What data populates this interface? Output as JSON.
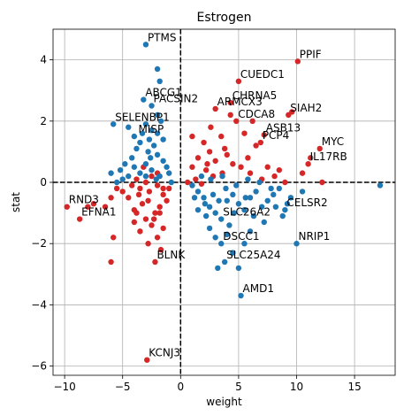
{
  "chart_data": {
    "type": "scatter",
    "title": "Estrogen",
    "xlabel": "weight",
    "ylabel": "stat",
    "xlim": [
      -11,
      18.5
    ],
    "ylim": [
      -6.3,
      5.0
    ],
    "xticks": [
      -10,
      -5,
      0,
      5,
      10,
      15
    ],
    "yticks": [
      -6,
      -4,
      -2,
      0,
      2,
      4
    ],
    "grid": true,
    "reference_lines": {
      "x": 0,
      "y": 0,
      "style": "dashed"
    },
    "colors": {
      "positive": "#d62728",
      "negative": "#1f77b4"
    },
    "series": [
      {
        "name": "red",
        "color": "#d62728",
        "points": [
          [
            5.0,
            3.3
          ],
          [
            10.1,
            3.95
          ],
          [
            4.3,
            2.6
          ],
          [
            4.3,
            2.2
          ],
          [
            3.0,
            2.4
          ],
          [
            4.8,
            2.0
          ],
          [
            9.3,
            2.2
          ],
          [
            9.6,
            2.3
          ],
          [
            7.2,
            1.55
          ],
          [
            6.9,
            1.3
          ],
          [
            6.5,
            1.2
          ],
          [
            12.0,
            1.1
          ],
          [
            11.0,
            0.6
          ],
          [
            11.2,
            0.8
          ],
          [
            10.5,
            0.3
          ],
          [
            12.2,
            0.0
          ],
          [
            3.5,
            1.5
          ],
          [
            2.0,
            1.3
          ],
          [
            2.5,
            1.0
          ],
          [
            1.5,
            0.8
          ],
          [
            3.0,
            0.7
          ],
          [
            1.0,
            0.5
          ],
          [
            2.2,
            0.4
          ],
          [
            4.5,
            0.6
          ],
          [
            3.6,
            0.3
          ],
          [
            2.8,
            0.2
          ],
          [
            1.3,
            0.1
          ],
          [
            5.8,
            0.8
          ],
          [
            5.2,
            0.5
          ],
          [
            6.0,
            0.3
          ],
          [
            7.0,
            0.1
          ],
          [
            8.1,
            0.2
          ],
          [
            9.0,
            0.0
          ],
          [
            0.6,
            0.0
          ],
          [
            1.8,
            -0.05
          ],
          [
            2.6,
            1.8
          ],
          [
            3.8,
            1.1
          ],
          [
            5.5,
            1.6
          ],
          [
            6.2,
            2.0
          ],
          [
            4.0,
            0.9
          ],
          [
            1.0,
            1.5
          ],
          [
            2.3,
            0.6
          ],
          [
            8.5,
            0.4
          ],
          [
            7.5,
            0.5
          ],
          [
            -3.2,
            0.5
          ],
          [
            -2.5,
            0.2
          ],
          [
            -2.0,
            -0.1
          ],
          [
            -1.5,
            -0.4
          ],
          [
            -2.8,
            -0.6
          ],
          [
            -3.5,
            -0.2
          ],
          [
            -1.8,
            -0.8
          ],
          [
            -2.2,
            -1.0
          ],
          [
            -3.0,
            -1.2
          ],
          [
            -4.0,
            -0.9
          ],
          [
            -1.5,
            -1.5
          ],
          [
            -2.5,
            -1.4
          ],
          [
            -3.5,
            -1.6
          ],
          [
            -2.0,
            -1.8
          ],
          [
            -1.7,
            -2.2
          ],
          [
            -2.8,
            -2.0
          ],
          [
            -3.8,
            -1.0
          ],
          [
            -4.5,
            -0.5
          ],
          [
            -5.0,
            -0.3
          ],
          [
            -5.5,
            -0.2
          ],
          [
            -6.0,
            -0.5
          ],
          [
            -6.5,
            -0.8
          ],
          [
            -7.5,
            -0.7
          ],
          [
            -8.0,
            -0.8
          ],
          [
            -8.7,
            -1.2
          ],
          [
            -9.8,
            -0.8
          ],
          [
            -5.8,
            -1.8
          ],
          [
            -6.0,
            -2.6
          ],
          [
            -2.2,
            -2.6
          ],
          [
            -1.5,
            -0.2
          ],
          [
            -3.0,
            0.0
          ],
          [
            -2.0,
            0.3
          ],
          [
            -3.8,
            0.1
          ],
          [
            -4.2,
            -0.1
          ],
          [
            -2.7,
            -0.3
          ],
          [
            -1.2,
            -0.6
          ],
          [
            -3.3,
            -0.7
          ],
          [
            -2.3,
            -1.2
          ],
          [
            -4.0,
            -1.3
          ],
          [
            -1.8,
            -1.0
          ],
          [
            -2.9,
            -5.8
          ],
          [
            -3.6,
            -0.4
          ],
          [
            -1.0,
            -0.2
          ]
        ]
      },
      {
        "name": "blue",
        "color": "#1f77b4",
        "points": [
          [
            -2.0,
            3.7
          ],
          [
            -1.8,
            3.3
          ],
          [
            -3.0,
            4.5
          ],
          [
            -3.2,
            2.7
          ],
          [
            -2.5,
            2.5
          ],
          [
            -2.0,
            2.2
          ],
          [
            -3.0,
            1.9
          ],
          [
            -2.5,
            1.7
          ],
          [
            -4.5,
            1.8
          ],
          [
            -4.0,
            1.5
          ],
          [
            -3.5,
            1.3
          ],
          [
            -2.8,
            1.0
          ],
          [
            -2.0,
            0.9
          ],
          [
            -1.5,
            0.7
          ],
          [
            -3.0,
            0.6
          ],
          [
            -4.0,
            0.5
          ],
          [
            -4.5,
            0.2
          ],
          [
            -5.0,
            0.1
          ],
          [
            -5.5,
            0.0
          ],
          [
            -3.5,
            0.3
          ],
          [
            -2.5,
            0.4
          ],
          [
            -1.8,
            0.2
          ],
          [
            -1.2,
            0.5
          ],
          [
            -2.3,
            1.2
          ],
          [
            -3.8,
            1.1
          ],
          [
            -2.6,
            0.8
          ],
          [
            -1.5,
            1.4
          ],
          [
            -2.0,
            1.6
          ],
          [
            -3.3,
            1.6
          ],
          [
            -1.7,
            2.0
          ],
          [
            -4.2,
            0.8
          ],
          [
            -3.0,
            0.2
          ],
          [
            -2.1,
            0.1
          ],
          [
            -5.8,
            1.9
          ],
          [
            -6.0,
            0.3
          ],
          [
            -5.2,
            0.4
          ],
          [
            -4.8,
            0.6
          ],
          [
            -1.0,
            0.3
          ],
          [
            -0.8,
            0.0
          ],
          [
            -2.7,
            1.4
          ],
          [
            1.0,
            -0.1
          ],
          [
            1.5,
            -0.3
          ],
          [
            2.0,
            -0.5
          ],
          [
            2.5,
            -0.8
          ],
          [
            3.0,
            -1.0
          ],
          [
            3.5,
            -1.2
          ],
          [
            4.0,
            -0.6
          ],
          [
            4.5,
            -0.4
          ],
          [
            5.0,
            -0.7
          ],
          [
            5.5,
            -0.9
          ],
          [
            6.0,
            -0.5
          ],
          [
            6.5,
            -0.3
          ],
          [
            7.0,
            -0.8
          ],
          [
            7.5,
            -0.6
          ],
          [
            8.0,
            -0.4
          ],
          [
            8.5,
            -0.2
          ],
          [
            9.0,
            -0.9
          ],
          [
            9.5,
            -0.5
          ],
          [
            10.5,
            -0.3
          ],
          [
            3.5,
            -2.0
          ],
          [
            4.5,
            -2.3
          ],
          [
            5.5,
            -2.0
          ],
          [
            6.0,
            -1.6
          ],
          [
            3.8,
            -2.6
          ],
          [
            3.2,
            -2.8
          ],
          [
            5.0,
            -2.8
          ],
          [
            2.5,
            -1.5
          ],
          [
            3.0,
            -1.8
          ],
          [
            4.2,
            -1.4
          ],
          [
            1.5,
            -0.9
          ],
          [
            2.2,
            -1.1
          ],
          [
            1.2,
            -0.5
          ],
          [
            1.8,
            0.2
          ],
          [
            2.6,
            0.1
          ],
          [
            3.6,
            0.2
          ],
          [
            4.8,
            -0.1
          ],
          [
            5.8,
            0.1
          ],
          [
            6.8,
            0.0
          ],
          [
            7.8,
            -0.2
          ],
          [
            8.8,
            -1.1
          ],
          [
            9.2,
            -0.7
          ],
          [
            10.0,
            -2.0
          ],
          [
            5.2,
            -3.7
          ],
          [
            17.2,
            -0.1
          ],
          [
            4.0,
            -1.7
          ],
          [
            2.8,
            -0.4
          ],
          [
            3.3,
            -0.6
          ],
          [
            6.3,
            -1.1
          ],
          [
            7.2,
            -1.3
          ],
          [
            4.6,
            -1.0
          ],
          [
            3.9,
            -0.2
          ],
          [
            2.1,
            -0.7
          ],
          [
            5.6,
            -0.5
          ],
          [
            8.2,
            -0.8
          ]
        ]
      }
    ],
    "annotations": [
      {
        "label": "PTMS",
        "x": -3.0,
        "y": 4.5
      },
      {
        "label": "PPIF",
        "x": 10.1,
        "y": 3.95
      },
      {
        "label": "CUEDC1",
        "x": 5.0,
        "y": 3.3
      },
      {
        "label": "ABCG1",
        "x": -3.2,
        "y": 2.7
      },
      {
        "label": "PACSIN2",
        "x": -2.5,
        "y": 2.5
      },
      {
        "label": "CHRNA5",
        "x": 4.3,
        "y": 2.6
      },
      {
        "label": "ARMCX3",
        "x": 3.0,
        "y": 2.4
      },
      {
        "label": "SIAH2",
        "x": 9.3,
        "y": 2.2
      },
      {
        "label": "CDCA8",
        "x": 4.8,
        "y": 2.0
      },
      {
        "label": "SELENBP1",
        "x": -5.8,
        "y": 1.9
      },
      {
        "label": "ASB13",
        "x": 7.2,
        "y": 1.55
      },
      {
        "label": "MISP",
        "x": -3.8,
        "y": 1.5
      },
      {
        "label": "MYC",
        "x": 12.0,
        "y": 1.1
      },
      {
        "label": "PCP4",
        "x": 6.9,
        "y": 1.3
      },
      {
        "label": "IL17RB",
        "x": 11.0,
        "y": 0.6
      },
      {
        "label": "RND3",
        "x": -9.8,
        "y": -0.8
      },
      {
        "label": "CELSR2",
        "x": 9.0,
        "y": -0.9
      },
      {
        "label": "SLC26A2",
        "x": 3.5,
        "y": -1.2
      },
      {
        "label": "EFNA1",
        "x": -8.7,
        "y": -1.2
      },
      {
        "label": "NRIP1",
        "x": 10.0,
        "y": -2.0
      },
      {
        "label": "BLNK",
        "x": -2.2,
        "y": -2.6
      },
      {
        "label": "DSCC1",
        "x": 3.5,
        "y": -2.0
      },
      {
        "label": "SLC25A24",
        "x": 3.8,
        "y": -2.6
      },
      {
        "label": "AMD1",
        "x": 5.2,
        "y": -3.7
      },
      {
        "label": "KCNJ3",
        "x": -2.9,
        "y": -5.8
      }
    ]
  }
}
